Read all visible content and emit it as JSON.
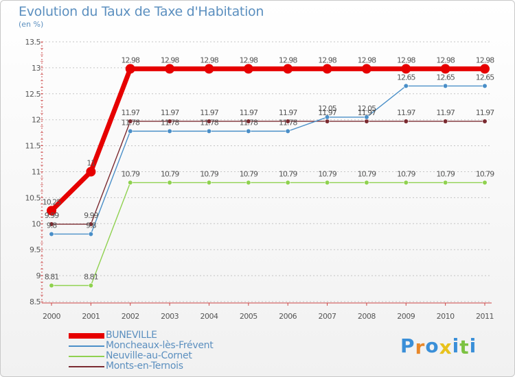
{
  "chart_data": {
    "type": "line",
    "title": "Evolution du Taux de Taxe d'Habitation",
    "subtitle": "(en %)",
    "xlabel": "",
    "ylabel": "",
    "ylim": [
      8.5,
      13.5
    ],
    "y_ticks": [
      "8.5",
      "9",
      "9.5",
      "10",
      "10.5",
      "11",
      "11.5",
      "12",
      "12.5",
      "13",
      "13.5"
    ],
    "categories": [
      "2000",
      "2001",
      "2002",
      "2003",
      "2004",
      "2005",
      "2006",
      "2007",
      "2008",
      "2009",
      "2010",
      "2011"
    ],
    "legend_position": "bottom-left",
    "series": [
      {
        "name": "BUNEVILLE",
        "color": "#e60000",
        "values": [
          10.25,
          11,
          12.98,
          12.98,
          12.98,
          12.98,
          12.98,
          12.98,
          12.98,
          12.98,
          12.98,
          12.98
        ],
        "labels": [
          "10.25",
          "11",
          "12.98",
          "12.98",
          "12.98",
          "12.98",
          "12.98",
          "12.98",
          "12.98",
          "12.98",
          "12.98",
          "12.98"
        ]
      },
      {
        "name": "Moncheaux-lès-Frévent",
        "color": "#4a8fc8",
        "values": [
          9.8,
          9.8,
          11.78,
          11.78,
          11.78,
          11.78,
          11.78,
          12.05,
          12.05,
          12.65,
          12.65,
          12.65
        ],
        "labels": [
          "9.8",
          "9.8",
          "11.78",
          "11.78",
          "11.78",
          "11.78",
          "11.78",
          "12.05",
          "12.05",
          "12.65",
          "12.65",
          "12.65"
        ]
      },
      {
        "name": "Neuville-au-Cornet",
        "color": "#8fd14f",
        "values": [
          8.81,
          8.81,
          10.79,
          10.79,
          10.79,
          10.79,
          10.79,
          10.79,
          10.79,
          10.79,
          10.79,
          10.79
        ],
        "labels": [
          "8.81",
          "8.81",
          "10.79",
          "10.79",
          "10.79",
          "10.79",
          "10.79",
          "10.79",
          "10.79",
          "10.79",
          "10.79",
          "10.79"
        ]
      },
      {
        "name": "Monts-en-Ternois",
        "color": "#7a2a30",
        "values": [
          9.99,
          9.99,
          11.97,
          11.97,
          11.97,
          11.97,
          11.97,
          11.97,
          11.97,
          11.97,
          11.97,
          11.97
        ],
        "labels": [
          "9.99",
          "9.99",
          "11.97",
          "11.97",
          "11.97",
          "11.97",
          "11.97",
          "11.97",
          "11.97",
          "11.97",
          "11.97",
          "11.97"
        ]
      }
    ]
  },
  "branding": {
    "logo_letters": [
      "P",
      "r",
      "o",
      "x",
      "i",
      "t",
      "i"
    ],
    "logo_colors": [
      "#3a8fd8",
      "#e8882a",
      "#3a8fd8",
      "#e8c21c",
      "#3a8fd8",
      "#7cc242",
      "#3a8fd8"
    ]
  }
}
